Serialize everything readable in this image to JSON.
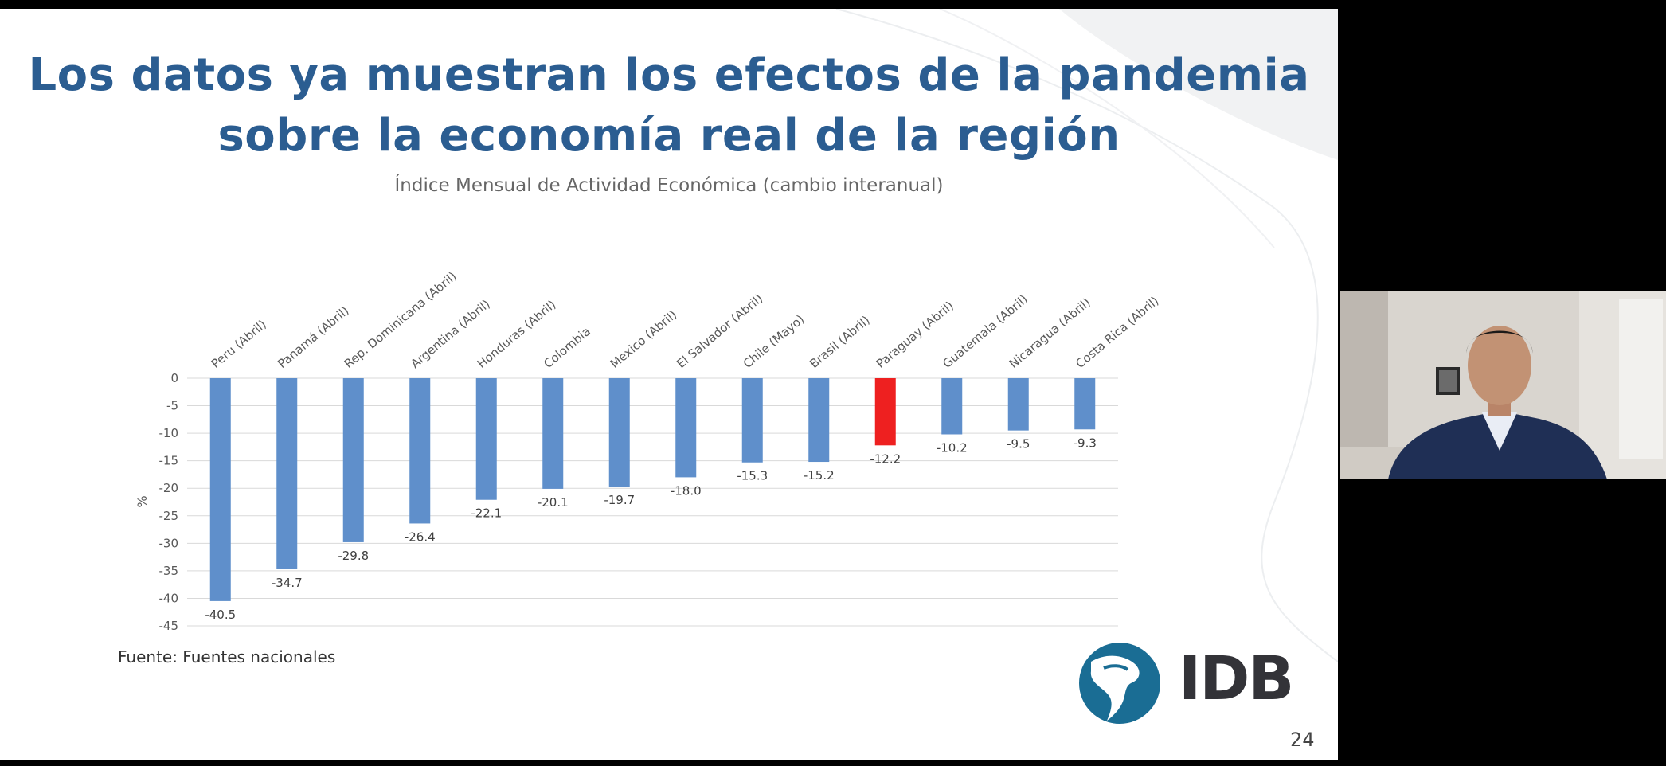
{
  "slide": {
    "title_line1": "Los datos ya muestran los efectos de la pandemia",
    "title_line2": "sobre la economía real de la región",
    "subtitle": "Índice Mensual de Actividad Económica (cambio interanual)",
    "source": "Fuente: Fuentes nacionales",
    "logo_text": "IDB",
    "page_number": "24"
  },
  "chart_data": {
    "type": "bar",
    "title": "Índice Mensual de Actividad Económica (cambio interanual)",
    "ylabel": "%",
    "xlabel": "",
    "ylim": [
      -45,
      0
    ],
    "yticks": [
      0,
      -5,
      -10,
      -15,
      -20,
      -25,
      -30,
      -35,
      -40,
      -45
    ],
    "grid": true,
    "categories": [
      "Peru (Abril)",
      "Panamá (Abril)",
      "Rep. Dominicana (Abril)",
      "Argentina (Abril)",
      "Honduras (Abril)",
      "Colombia",
      "Mexico (Abril)",
      "El Salvador (Abril)",
      "Chile (Mayo)",
      "Brasil (Abril)",
      "Paraguay (Abril)",
      "Guatemala (Abril)",
      "Nicaragua (Abril)",
      "Costa Rica (Abril)"
    ],
    "values": [
      -40.5,
      -34.7,
      -29.8,
      -26.4,
      -22.1,
      -20.1,
      -19.7,
      -18.0,
      -15.3,
      -15.2,
      -12.2,
      -10.2,
      -9.5,
      -9.3
    ],
    "value_labels": [
      "-40.5",
      "-34.7",
      "-29.8",
      "-26.4",
      "-22.1",
      "-20.1",
      "-19.7",
      "-18.0",
      "-15.3",
      "-15.2",
      "-12.2",
      "-10.2",
      "-9.5",
      "-9.3"
    ],
    "bar_color": "#5f8fcb",
    "highlight_color": "#ee2020",
    "highlight_index": 10
  },
  "colors": {
    "title": "#2b5d91",
    "logo": "#1a6d94"
  }
}
